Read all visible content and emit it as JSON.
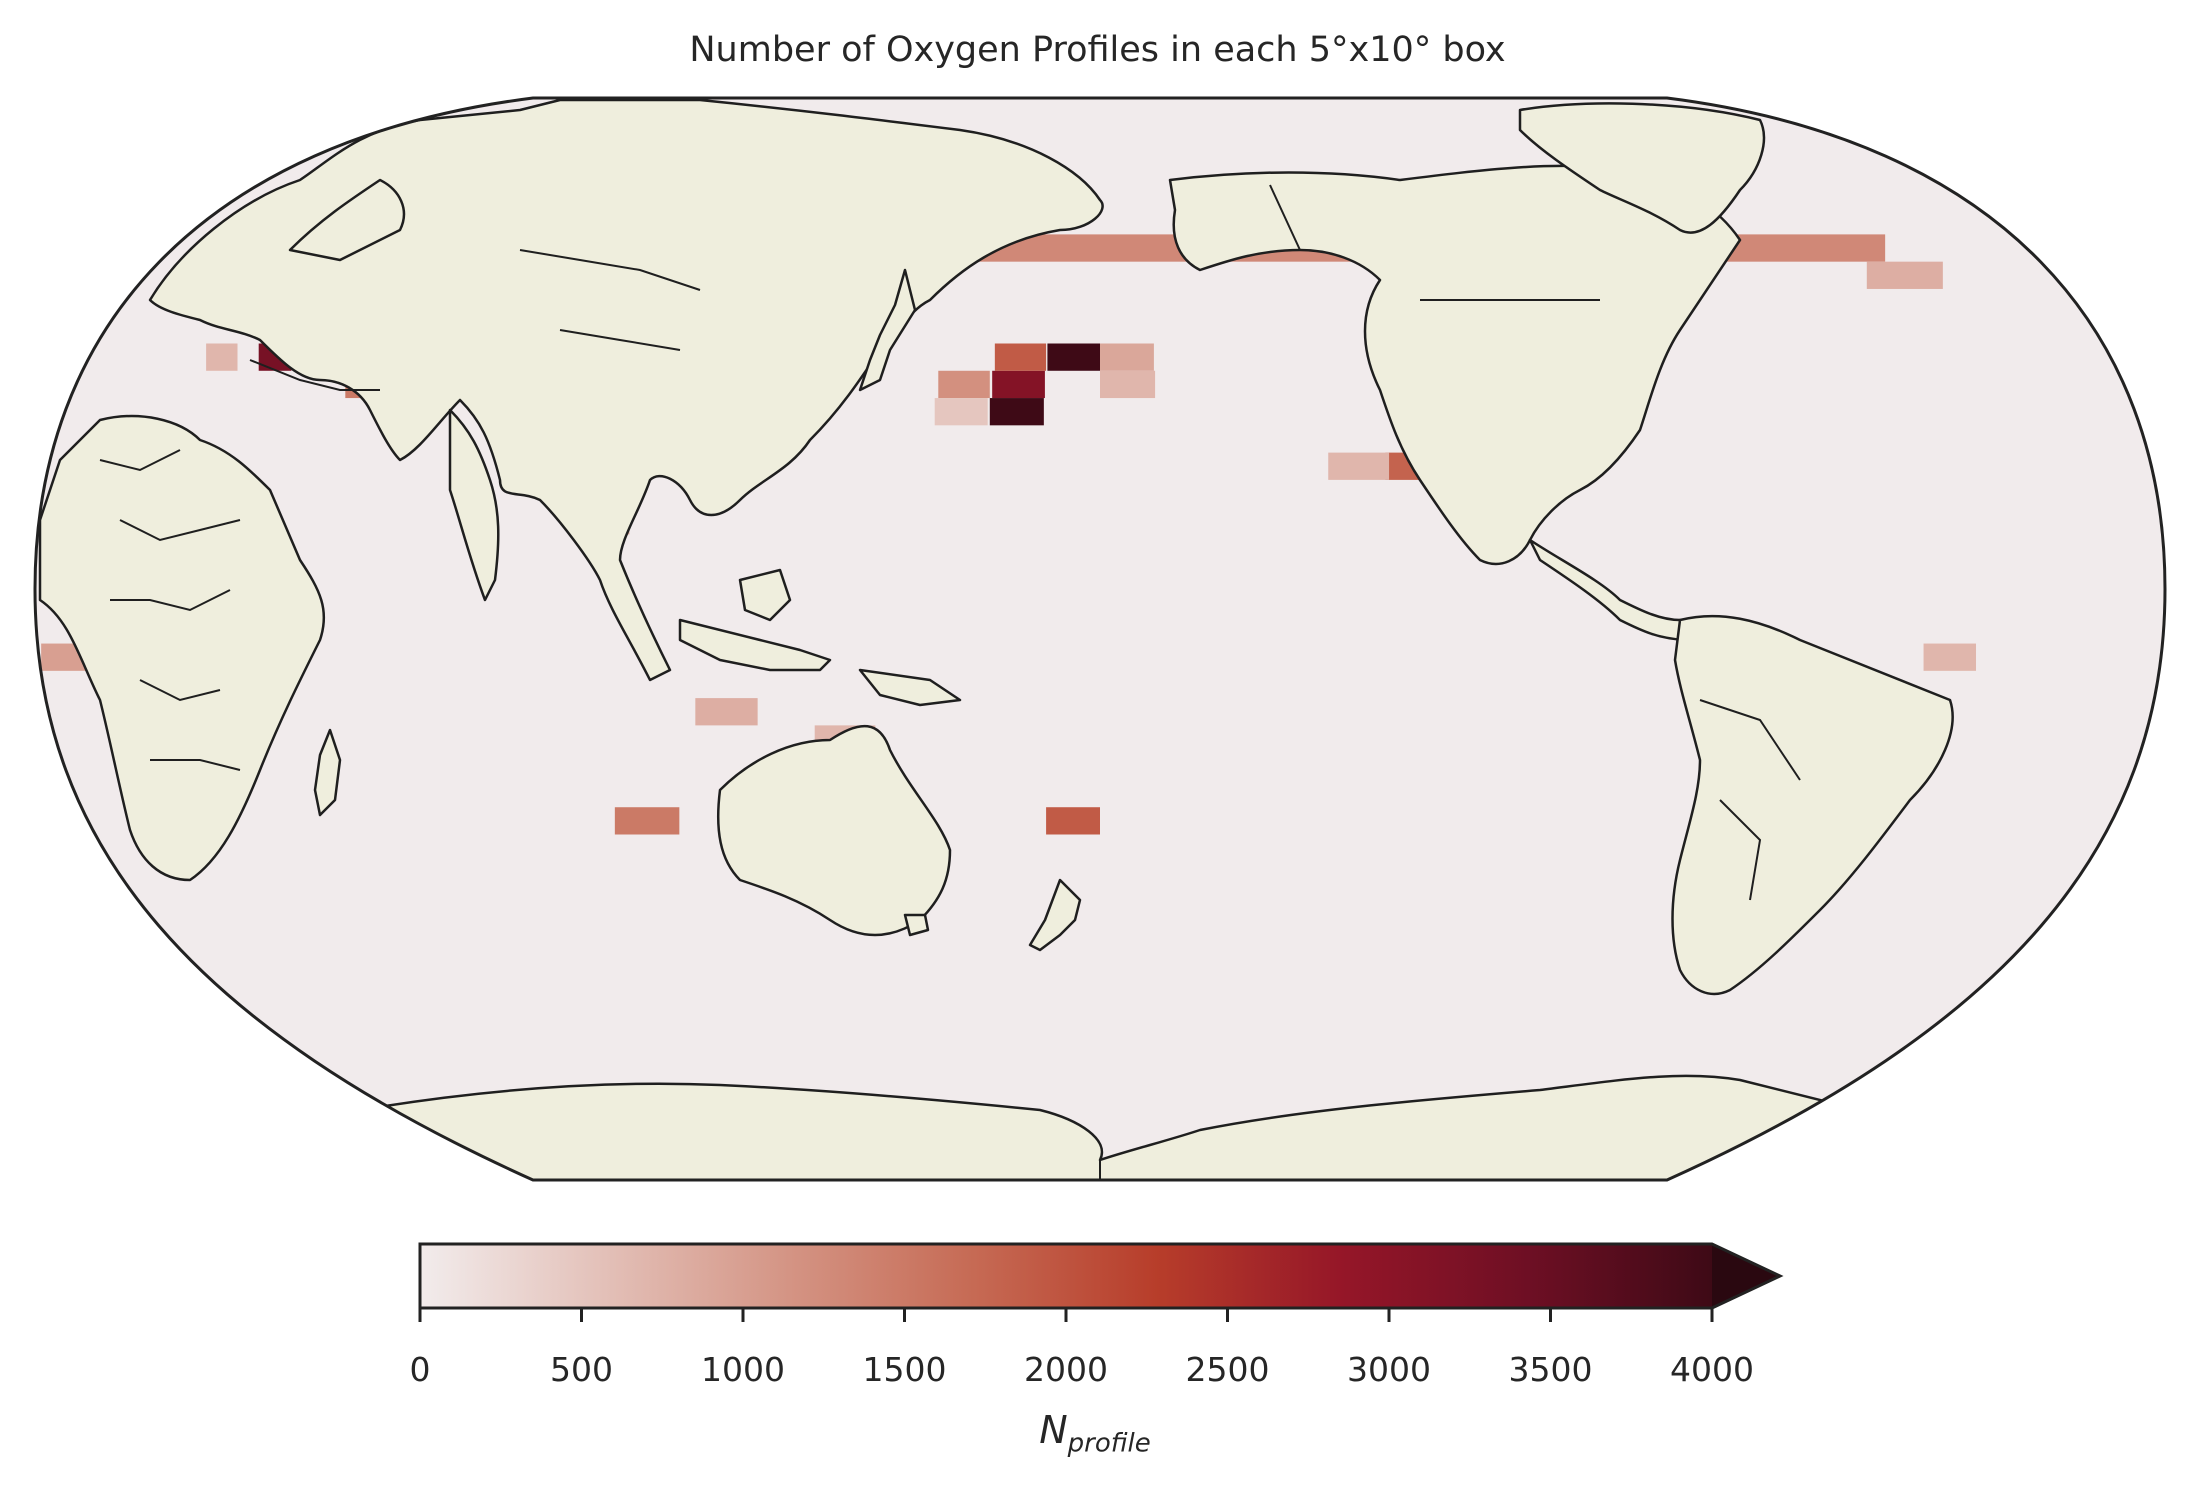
{
  "title": "Number of Oxygen Profiles in each 5°x10° box",
  "colorbar": {
    "label_main": "N",
    "label_sub": "profile",
    "ticks": [
      "0",
      "500",
      "1000",
      "1500",
      "2000",
      "2500",
      "3000",
      "3500",
      "4000"
    ],
    "min": 0,
    "max": 4000,
    "extend": "max",
    "colors": [
      "#f2ecec",
      "#e3c0b8",
      "#d49484",
      "#c66a54",
      "#b73d2a",
      "#951628",
      "#6e0f24",
      "#3e0a16",
      "#2a0810"
    ]
  },
  "map": {
    "projection": "Robinson",
    "central_longitude": 150,
    "grid_cell": "5°x10°",
    "ocean_background": "#f1ebec",
    "land_color": "#efeedd",
    "outline_color": "#1f1f1f"
  },
  "chart_data": {
    "type": "heatmap",
    "title": "Number of Oxygen Profiles in each 5°x10° box",
    "colorbar_range": [
      0,
      4000
    ],
    "cells": [
      {
        "lon": 140,
        "lat": 40,
        "value": 4000
      },
      {
        "lon": 130,
        "lat": 35,
        "value": 3100
      },
      {
        "lon": 130,
        "lat": 30,
        "value": 4000
      },
      {
        "lon": 130,
        "lat": 40,
        "value": 1900
      },
      {
        "lon": 150,
        "lat": 40,
        "value": 900
      },
      {
        "lon": 150,
        "lat": 35,
        "value": 700
      },
      {
        "lon": 120,
        "lat": 35,
        "value": 1200
      },
      {
        "lon": 120,
        "lat": 30,
        "value": 500
      },
      {
        "lon": -160,
        "lat": 20,
        "value": 1800
      },
      {
        "lon": -170,
        "lat": 20,
        "value": 700
      },
      {
        "lon": -150,
        "lat": 50,
        "value": 1000
      },
      {
        "lon": -140,
        "lat": 50,
        "value": 600
      },
      {
        "lon": -40,
        "lat": 60,
        "value": 1300
      },
      {
        "lon": -30,
        "lat": 60,
        "value": 1100
      },
      {
        "lon": -50,
        "lat": 55,
        "value": 800
      },
      {
        "lon": -20,
        "lat": 40,
        "value": 700
      },
      {
        "lon": -30,
        "lat": 15,
        "value": 900
      },
      {
        "lon": -30,
        "lat": -15,
        "value": 1000
      },
      {
        "lon": -70,
        "lat": -15,
        "value": 700
      },
      {
        "lon": 0,
        "lat": 40,
        "value": 1700
      },
      {
        "lon": 10,
        "lat": 35,
        "value": 1500
      },
      {
        "lon": 20,
        "lat": 35,
        "value": 1400
      },
      {
        "lon": -10,
        "lat": 40,
        "value": 3300
      },
      {
        "lon": 30,
        "lat": 45,
        "value": 1300
      },
      {
        "lon": 60,
        "lat": 15,
        "value": 1600
      },
      {
        "lon": 60,
        "lat": 10,
        "value": 900
      },
      {
        "lon": 60,
        "lat": -45,
        "value": 1500
      },
      {
        "lon": 140,
        "lat": -45,
        "value": 1900
      },
      {
        "lon": 80,
        "lat": -25,
        "value": 800
      },
      {
        "lon": 100,
        "lat": -30,
        "value": 700
      }
    ]
  }
}
